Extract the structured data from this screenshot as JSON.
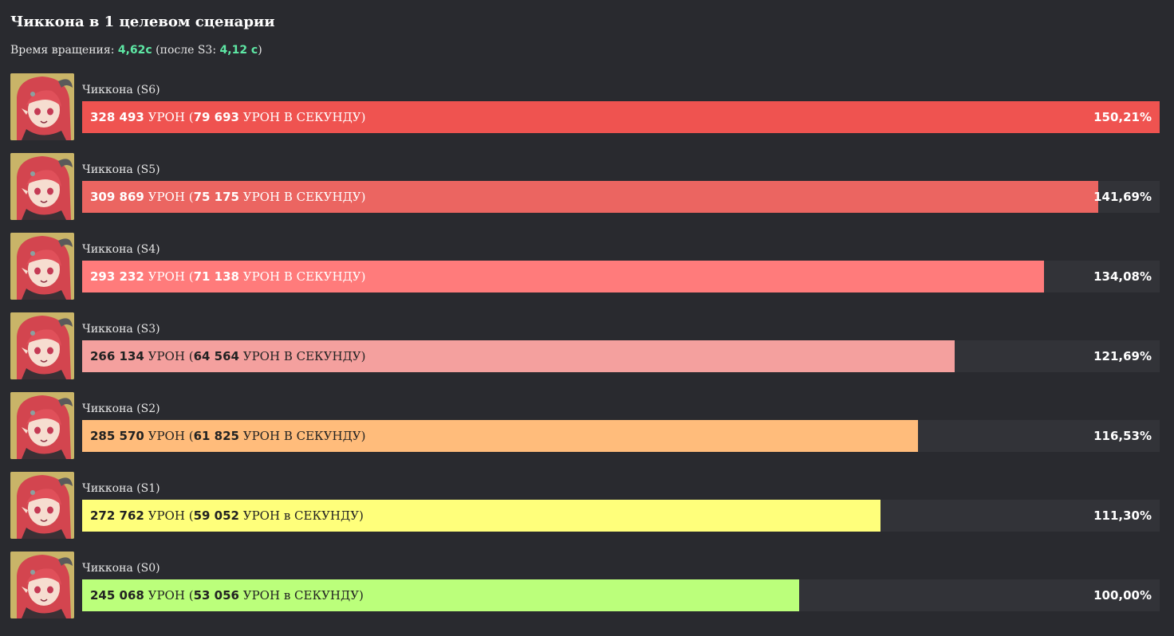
{
  "header": {
    "title": "Чиккона в 1 целевом сценарии",
    "rotation_label": "Время вращения: ",
    "rotation_value": "4,62с",
    "after_open": " (после S3: ",
    "after_value": "4,12 с",
    "after_close": ")"
  },
  "chart_data": {
    "type": "bar",
    "orientation": "horizontal",
    "title": "Чиккона в 1 целевом сценарии",
    "xlim": [
      0,
      150.21
    ],
    "categories": [
      "Чиккона (S6)",
      "Чиккона (S5)",
      "Чиккона (S4)",
      "Чиккона (S3)",
      "Чиккона (S2)",
      "Чиккона (S1)",
      "Чиккона (S0)"
    ],
    "bars": [
      {
        "label": "Чиккона (S6)",
        "damage": "328 493",
        "unit": " УРОН (",
        "dps": "79 693",
        "dps_unit": " УРОН В СЕКУНДУ)",
        "percent_label": "150,21%",
        "value": 150.21,
        "color": "#ef5350",
        "text_color": "#ffffff"
      },
      {
        "label": "Чиккона (S5)",
        "damage": "309 869",
        "unit": " УРОН (",
        "dps": "75 175",
        "dps_unit": " УРОН В СЕКУНДУ)",
        "percent_label": "141,69%",
        "value": 141.69,
        "color": "#eb6561",
        "text_color": "#ffffff"
      },
      {
        "label": "Чиккона (S4)",
        "damage": "293 232",
        "unit": " УРОН (",
        "dps": "71 138",
        "dps_unit": " УРОН В СЕКУНДУ)",
        "percent_label": "134,08%",
        "value": 134.08,
        "color": "#ff7b7b",
        "text_color": "#ffffff"
      },
      {
        "label": "Чиккона (S3)",
        "damage": "266 134",
        "unit": " УРОН (",
        "dps": "64 564",
        "dps_unit": " УРОН В СЕКУНДУ)",
        "percent_label": "121,69%",
        "value": 121.69,
        "color": "#f4a09e",
        "text_color": "#222222"
      },
      {
        "label": "Чиккона (S2)",
        "damage": "285 570",
        "unit": " УРОН (",
        "dps": "61 825",
        "dps_unit": " УРОН В СЕКУНДУ)",
        "percent_label": "116,53%",
        "value": 116.53,
        "color": "#ffbc7b",
        "text_color": "#222222"
      },
      {
        "label": "Чиккона (S1)",
        "damage": "272 762",
        "unit": " УРОН (",
        "dps": "59 052",
        "dps_unit": " УРОН в СЕКУНДУ)",
        "percent_label": "111,30%",
        "value": 111.3,
        "color": "#ffff7b",
        "text_color": "#222222"
      },
      {
        "label": "Чиккона (S0)",
        "damage": "245 068",
        "unit": " УРОН (",
        "dps": "53 056",
        "dps_unit": " УРОН в СЕКУНДУ)",
        "percent_label": "100,00%",
        "value": 100.0,
        "color": "#bbff7b",
        "text_color": "#222222"
      }
    ]
  }
}
